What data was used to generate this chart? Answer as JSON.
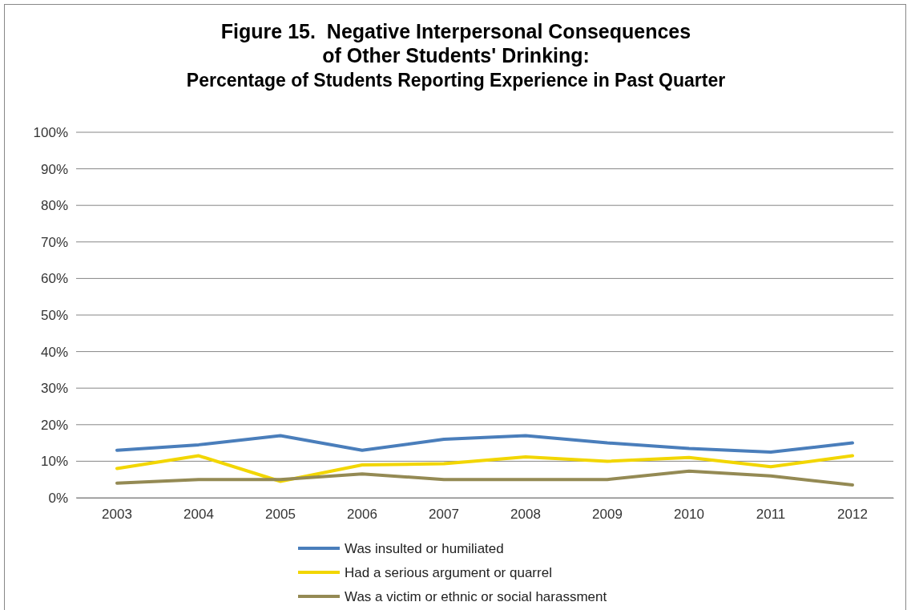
{
  "chart_data": {
    "type": "line",
    "title": "Figure 15.  Negative Interpersonal Consequences\nof Other Students' Drinking:",
    "subtitle": "Percentage of Students Reporting Experience in Past Quarter",
    "categories": [
      "2003",
      "2004",
      "2005",
      "2006",
      "2007",
      "2008",
      "2009",
      "2010",
      "2011",
      "2012"
    ],
    "series": [
      {
        "name": "Was insulted or humiliated",
        "color": "#4a7ebb",
        "values": [
          13,
          14.5,
          17,
          13,
          16,
          17,
          15,
          13.5,
          12.5,
          15
        ]
      },
      {
        "name": "Had a serious argument or quarrel",
        "color": "#f2d600",
        "values": [
          8,
          11.5,
          4.5,
          9,
          9.3,
          11.2,
          10,
          11,
          8.5,
          11.5
        ]
      },
      {
        "name": "Was a victim or ethnic or social harassment",
        "color": "#948a54",
        "values": [
          4,
          5,
          5,
          6.5,
          5,
          5,
          5,
          7.3,
          6,
          3.5
        ]
      }
    ],
    "ylim": [
      0,
      100
    ],
    "yticks": [
      {
        "value": 0,
        "label": "0%"
      },
      {
        "value": 10,
        "label": "10%"
      },
      {
        "value": 20,
        "label": "20%"
      },
      {
        "value": 30,
        "label": "30%"
      },
      {
        "value": 40,
        "label": "40%"
      },
      {
        "value": 50,
        "label": "50%"
      },
      {
        "value": 60,
        "label": "60%"
      },
      {
        "value": 70,
        "label": "70%"
      },
      {
        "value": 80,
        "label": "80%"
      },
      {
        "value": 90,
        "label": "90%"
      },
      {
        "value": 100,
        "label": "100%"
      }
    ],
    "grid": "y",
    "legend": "bottom",
    "marker": "none",
    "line_style": "solid"
  }
}
